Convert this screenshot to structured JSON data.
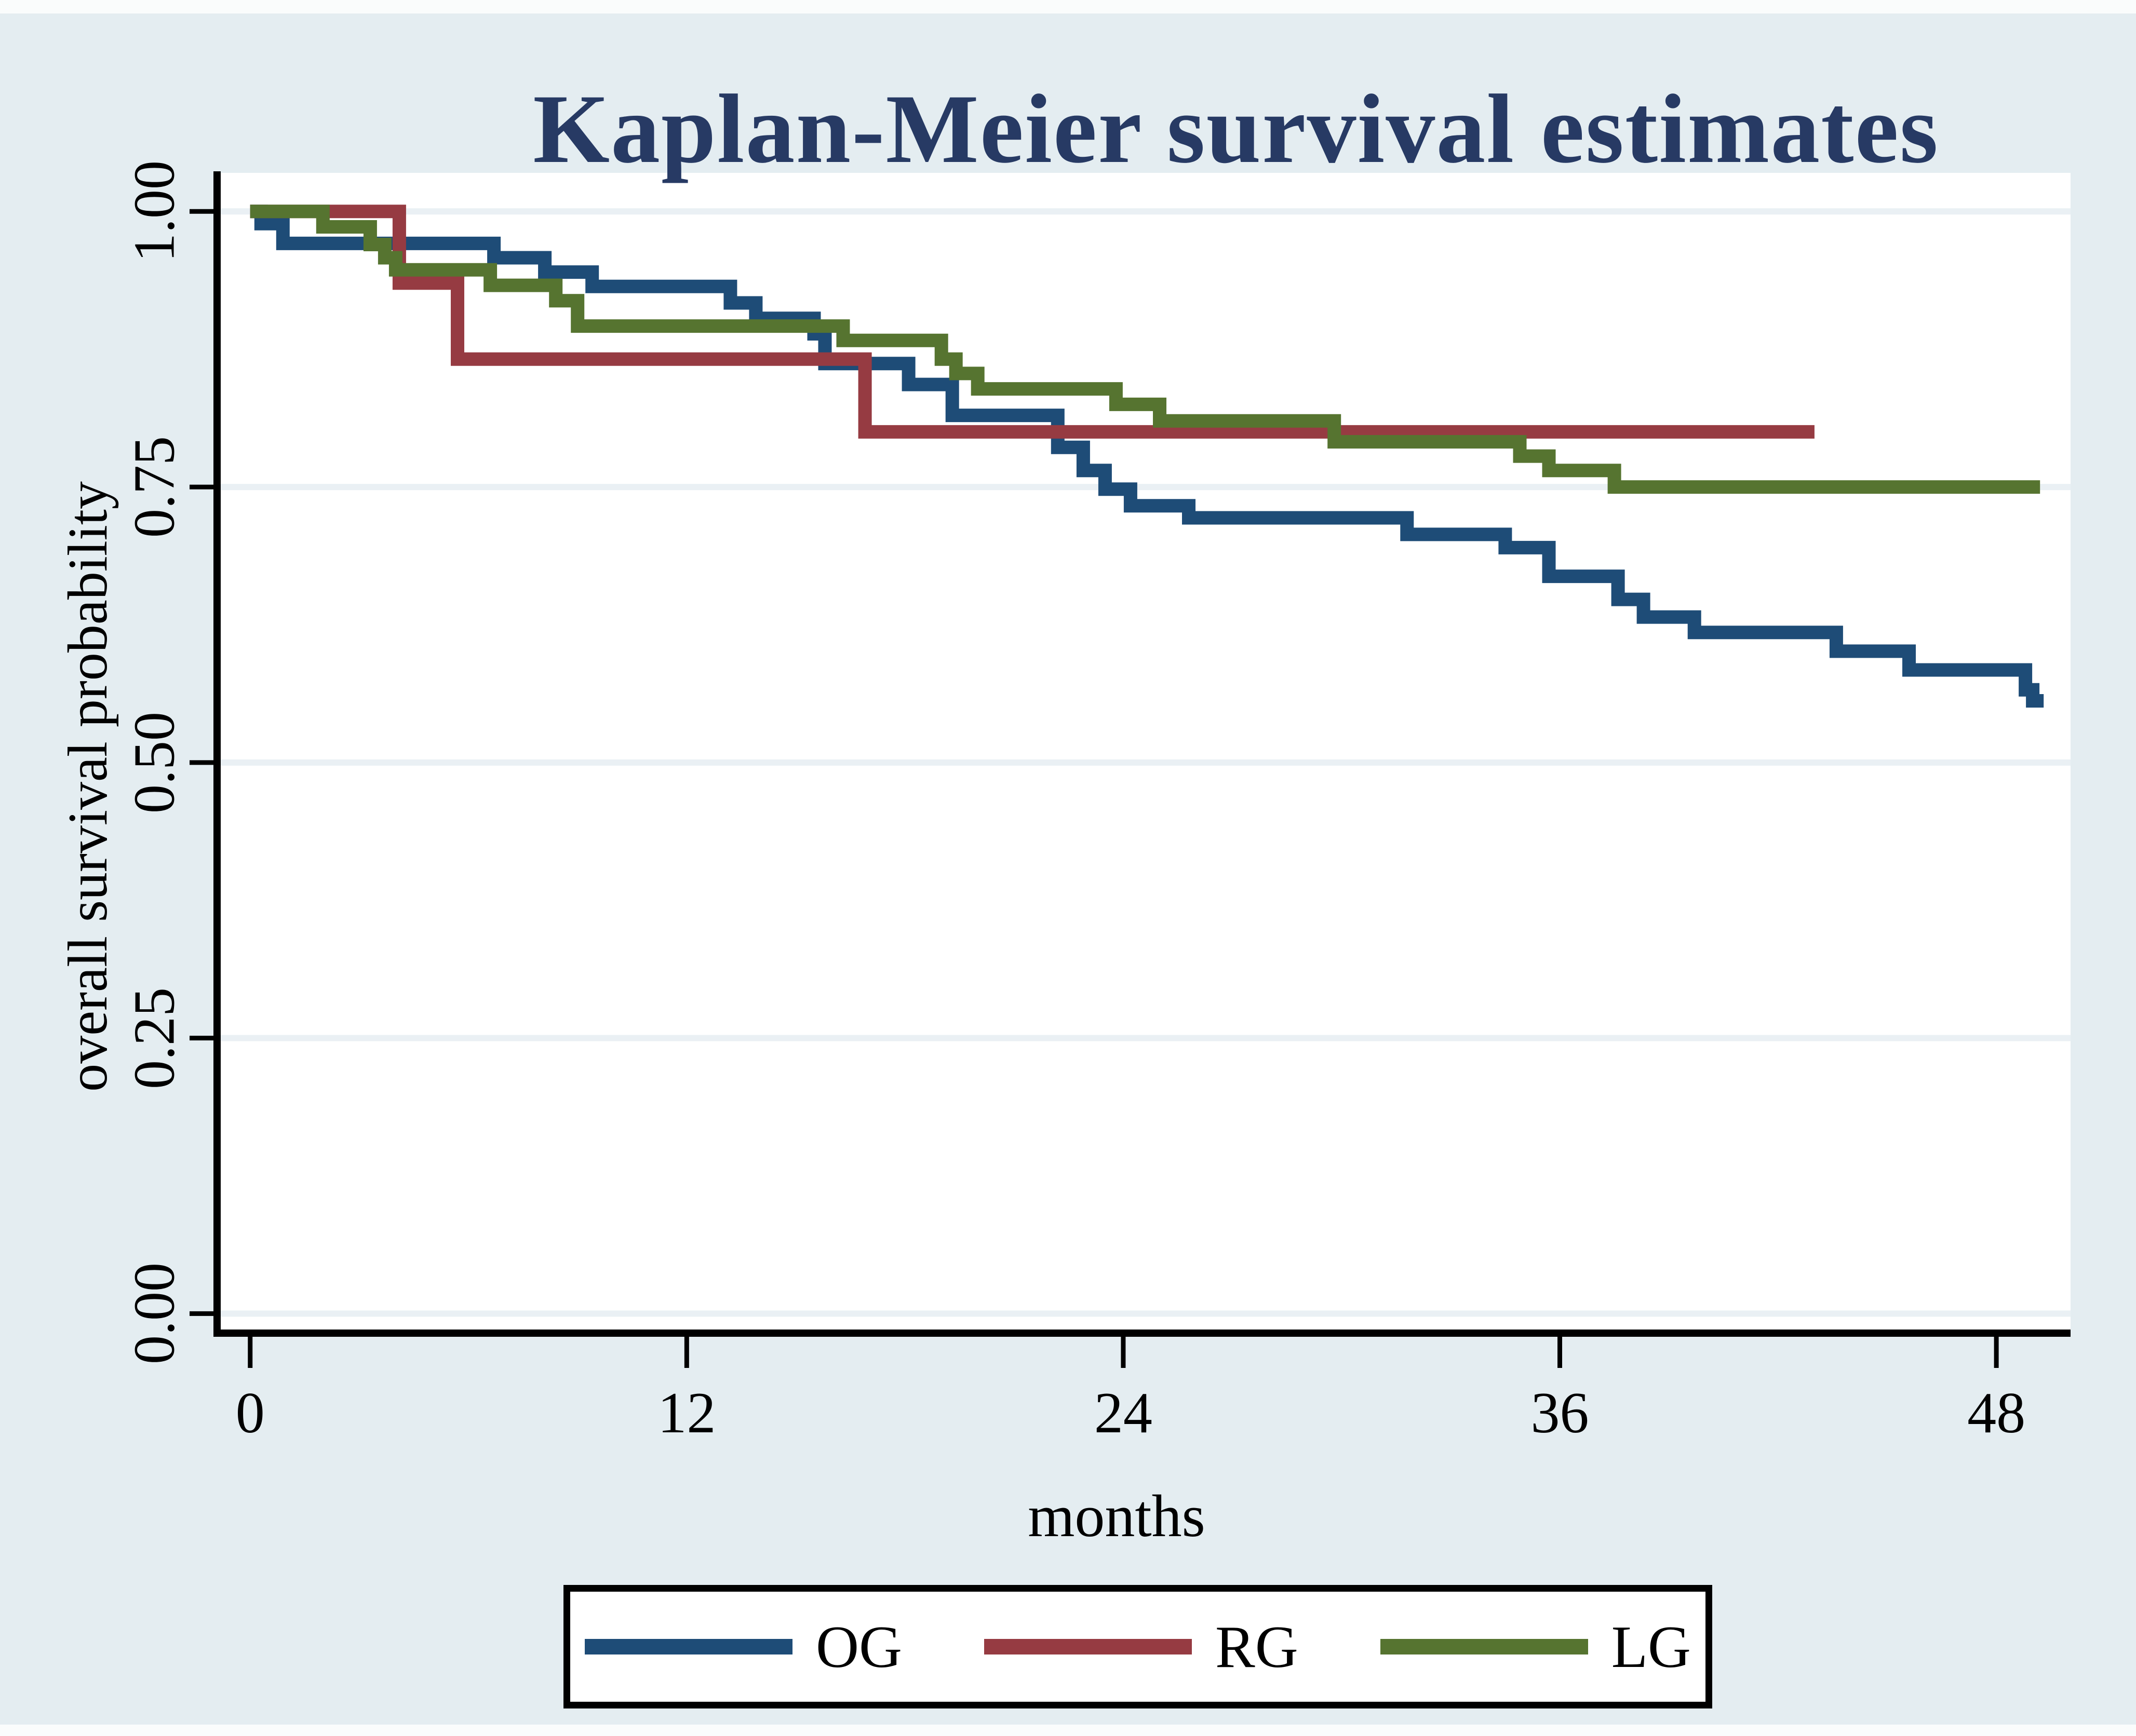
{
  "colors": {
    "figure_background": "#e4edf1",
    "plot_background": "#ffffff",
    "gridline": "#eaf0f4",
    "axis": "#000000",
    "title": "#273a64",
    "text": "#000000",
    "legend_border": "#000000",
    "legend_background": "#ffffff",
    "og_line": "#1e4c77",
    "rg_line": "#963b42",
    "lg_line": "#567430"
  },
  "chart_data": {
    "type": "line",
    "subtype": "kaplan-meier-step",
    "title": "Kaplan-Meier survival estimates",
    "xlabel": "months",
    "ylabel": "overall survival probability",
    "xlim": [
      -0.81,
      50.04
    ],
    "ylim": [
      -0.021,
      1.035
    ],
    "x_ticks": [
      0,
      12,
      24,
      36,
      48
    ],
    "x_tick_labels": [
      "0",
      "12",
      "24",
      "36",
      "48"
    ],
    "y_ticks": [
      0,
      0.25,
      0.5,
      0.75,
      1
    ],
    "y_tick_labels": [
      "0.00",
      "0.25",
      "0.50",
      "0.75",
      "1.00"
    ],
    "grid": true,
    "legend_position": "bottom",
    "series": [
      {
        "name": "OG",
        "color": "#1e4c77",
        "points": [
          [
            0,
            1
          ],
          [
            0.3,
            0.989
          ],
          [
            0.9,
            0.971
          ],
          [
            6.7,
            0.958
          ],
          [
            8.1,
            0.945
          ],
          [
            9.4,
            0.932
          ],
          [
            13.2,
            0.917
          ],
          [
            13.9,
            0.903
          ],
          [
            15.5,
            0.889
          ],
          [
            15.8,
            0.862
          ],
          [
            18.1,
            0.843
          ],
          [
            19.3,
            0.815
          ],
          [
            22.2,
            0.786
          ],
          [
            22.9,
            0.765
          ],
          [
            23.5,
            0.748
          ],
          [
            24.2,
            0.733
          ],
          [
            25.8,
            0.722
          ],
          [
            31.8,
            0.707
          ],
          [
            34.5,
            0.695
          ],
          [
            35.7,
            0.669
          ],
          [
            37.6,
            0.648
          ],
          [
            38.3,
            0.632
          ],
          [
            39.7,
            0.618
          ],
          [
            43.6,
            0.601
          ],
          [
            45.6,
            0.584
          ],
          [
            48.8,
            0.566
          ],
          [
            49.0,
            0.556
          ],
          [
            49.3,
            0.556
          ]
        ]
      },
      {
        "name": "RG",
        "color": "#963b42",
        "points": [
          [
            0,
            1
          ],
          [
            4.1,
            0.935
          ],
          [
            5.7,
            0.866
          ],
          [
            16.9,
            0.8
          ],
          [
            43,
            0.8
          ]
        ]
      },
      {
        "name": "LG",
        "color": "#567430",
        "points": [
          [
            0,
            1
          ],
          [
            2,
            0.986
          ],
          [
            3.3,
            0.97
          ],
          [
            3.7,
            0.958
          ],
          [
            4,
            0.947
          ],
          [
            6.6,
            0.933
          ],
          [
            8.4,
            0.919
          ],
          [
            9,
            0.896
          ],
          [
            16.3,
            0.883
          ],
          [
            19,
            0.866
          ],
          [
            19.4,
            0.853
          ],
          [
            20,
            0.839
          ],
          [
            23.8,
            0.825
          ],
          [
            25,
            0.81
          ],
          [
            29.8,
            0.791
          ],
          [
            34.9,
            0.778
          ],
          [
            35.7,
            0.765
          ],
          [
            37.5,
            0.75
          ],
          [
            49.2,
            0.75
          ]
        ]
      }
    ]
  }
}
